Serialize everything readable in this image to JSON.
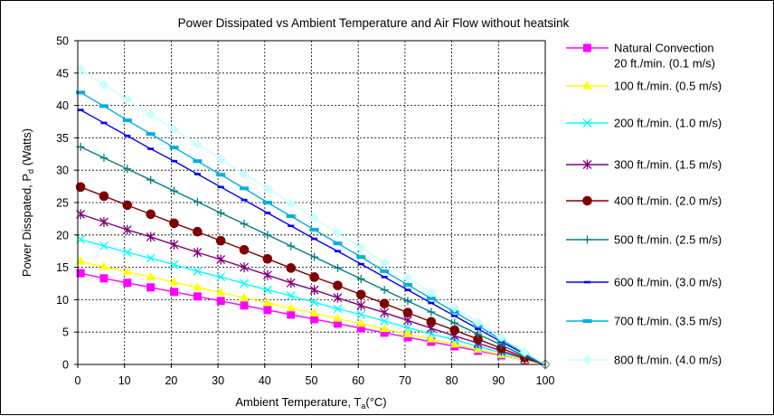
{
  "chart_data": {
    "type": "line",
    "title": "Power Dissipated vs Ambient Temperature and Air Flow without heatsink",
    "xlabel": {
      "main": "Ambient Temperature, T",
      "sub": "a",
      "unit": "(°C)"
    },
    "ylabel": {
      "main": "Power Disspated, P",
      "sub": "d",
      "unit": " (Watts)"
    },
    "xlim": [
      0,
      100
    ],
    "ylim": [
      0,
      50
    ],
    "x_ticks": [
      "0",
      "10",
      "20",
      "30",
      "40",
      "50",
      "60",
      "70",
      "80",
      "90",
      "100"
    ],
    "y_ticks": [
      "0",
      "5",
      "10",
      "15",
      "20",
      "25",
      "30",
      "35",
      "40",
      "45",
      "50"
    ],
    "grid": "dotted",
    "legend_position": "right",
    "x": [
      0.6,
      5.6,
      10.6,
      15.6,
      20.6,
      25.6,
      30.6,
      35.6,
      40.6,
      45.6,
      50.6,
      55.6,
      60.6,
      65.6,
      70.6,
      75.6,
      80.6,
      85.6,
      90.6,
      95.6,
      100
    ],
    "series": [
      {
        "name": "Natural Convection",
        "name2": "20 ft./min. (0.1 m/s)",
        "color": "#ff00ff",
        "marker": "square",
        "values": [
          14.1,
          13.3,
          12.6,
          11.9,
          11.2,
          10.5,
          9.8,
          9.1,
          8.4,
          7.7,
          7.0,
          6.3,
          5.6,
          4.9,
          4.2,
          3.5,
          2.8,
          2.1,
          1.4,
          0.7,
          0
        ]
      },
      {
        "name": "100 ft./min. (0.5 m/s)",
        "color": "#ffff00",
        "marker": "triangle",
        "values": [
          15.9,
          15.1,
          14.3,
          13.5,
          12.7,
          11.9,
          11.1,
          10.3,
          9.5,
          8.7,
          7.9,
          7.1,
          6.3,
          5.5,
          4.7,
          3.9,
          3.1,
          2.3,
          1.5,
          0.7,
          0
        ]
      },
      {
        "name": "200 ft./min. (1.0 m/s)",
        "color": "#00ffff",
        "marker": "x",
        "values": [
          19.3,
          18.3,
          17.3,
          16.4,
          15.4,
          14.4,
          13.5,
          12.5,
          11.5,
          10.6,
          9.6,
          8.6,
          7.7,
          6.7,
          5.7,
          4.7,
          3.8,
          2.8,
          1.8,
          0.9,
          0
        ]
      },
      {
        "name": "300 ft./min. (1.5 m/s)",
        "color": "#800080",
        "marker": "star",
        "values": [
          23.2,
          22.0,
          20.8,
          19.7,
          18.5,
          17.3,
          16.2,
          15.0,
          13.8,
          12.6,
          11.5,
          10.3,
          9.1,
          8.0,
          6.8,
          5.6,
          4.4,
          3.3,
          2.1,
          0.9,
          0
        ]
      },
      {
        "name": "400 ft./min. (2.0 m/s)",
        "color": "#800000",
        "marker": "circle",
        "values": [
          27.4,
          26.0,
          24.6,
          23.2,
          21.8,
          20.5,
          19.1,
          17.7,
          16.3,
          14.9,
          13.5,
          12.2,
          10.8,
          9.4,
          8.0,
          6.6,
          5.3,
          3.9,
          2.5,
          1.1,
          0
        ]
      },
      {
        "name": "500 ft./min. (2.5 m/s)",
        "color": "#008080",
        "marker": "plus",
        "values": [
          33.6,
          31.9,
          30.2,
          28.5,
          26.8,
          25.1,
          23.4,
          21.7,
          20.0,
          18.3,
          16.6,
          14.9,
          13.2,
          11.5,
          9.8,
          8.1,
          6.4,
          4.7,
          3.0,
          1.3,
          0
        ]
      },
      {
        "name": "600 ft./min. (3.0 m/s)",
        "color": "#0000ff",
        "marker": "dash",
        "values": [
          39.3,
          37.3,
          35.3,
          33.3,
          31.4,
          29.4,
          27.4,
          25.4,
          23.4,
          21.4,
          19.4,
          17.5,
          15.5,
          13.5,
          11.5,
          9.5,
          7.5,
          5.5,
          3.5,
          1.6,
          0
        ]
      },
      {
        "name": "700 ft./min. (3.5 m/s)",
        "color": "#00b0e0",
        "marker": "bar",
        "values": [
          42.0,
          39.9,
          37.7,
          35.6,
          33.5,
          31.4,
          29.3,
          27.2,
          25.0,
          22.9,
          20.8,
          18.7,
          16.6,
          14.4,
          12.3,
          10.2,
          8.1,
          6.0,
          3.8,
          1.7,
          0
        ]
      },
      {
        "name": "800 ft./min. (4.0 m/s)",
        "color": "#c8ffff",
        "marker": "diamond",
        "values": [
          45.5,
          43.2,
          40.9,
          38.6,
          36.3,
          34.0,
          31.7,
          29.4,
          27.2,
          24.9,
          22.6,
          20.3,
          18.0,
          15.7,
          13.4,
          11.1,
          8.8,
          6.5,
          4.2,
          1.9,
          0
        ]
      }
    ]
  }
}
